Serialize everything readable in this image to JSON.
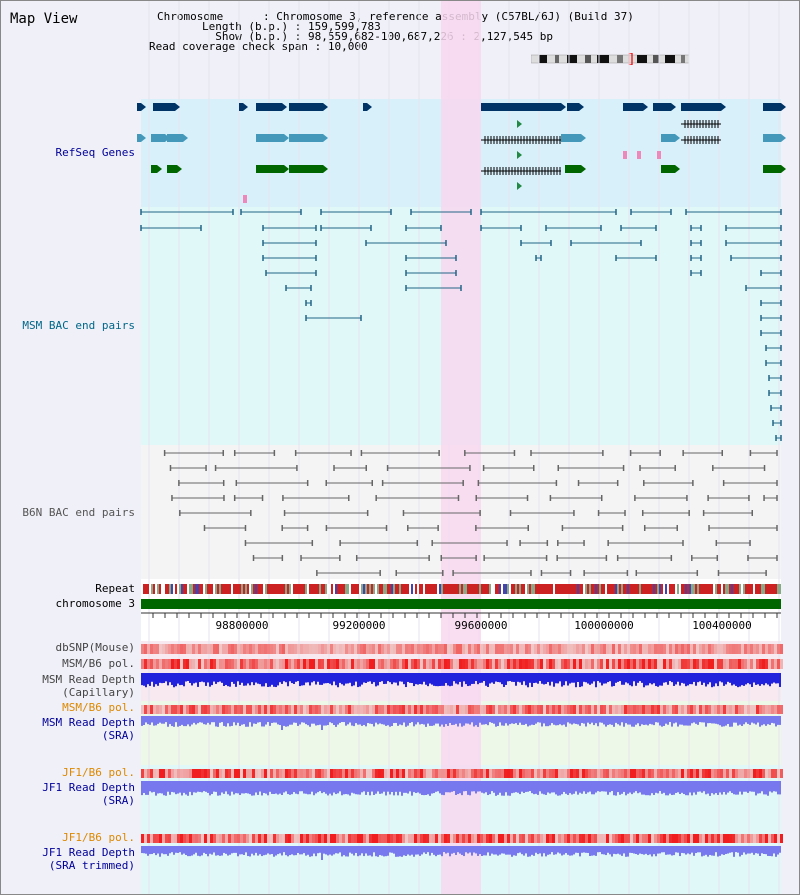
{
  "page_title": "Map View",
  "info": {
    "chromosome_key": "Chromosome",
    "chromosome_val": "Chromosome 3, reference assembly (C57BL/6J) (Build 37)",
    "length_key": "Length (b.p.)",
    "length_val": "159,599,783",
    "show_key": "Show (b.p.)",
    "show_val": "98,559,682-100,687,226 : 2,127,545 bp",
    "coverage_key": "Read coverage check span",
    "coverage_val": "10,000",
    "separator": ":"
  },
  "tracks": {
    "refseq": "RefSeq Genes",
    "msm_bac": "MSM BAC end pairs",
    "b6n_bac": "B6N BAC end pairs",
    "repeat": "Repeat",
    "chromosome": "chromosome 3",
    "dbsnp": "dbSNP(Mouse)",
    "msm_b6_pol_1": "MSM/B6 pol.",
    "msm_depth_cap_1": "MSM Read Depth",
    "msm_depth_cap_2": "(Capillary)",
    "msm_b6_pol_2": "MSM/B6 pol.",
    "msm_depth_sra_1": "MSM Read Depth",
    "msm_depth_sra_2": "(SRA)",
    "jf1_b6_pol_1": "JF1/B6 pol.",
    "jf1_depth_sra_1": "JF1 Read Depth",
    "jf1_depth_sra_2": "(SRA)",
    "jf1_b6_pol_2": "JF1/B6 pol.",
    "jf1_depth_trim_1": "JF1 Read Depth",
    "jf1_depth_trim_2": "(SRA trimmed)"
  },
  "axis_ticks": [
    "98800000",
    "99200000",
    "99600000",
    "100000000",
    "100400000"
  ],
  "colors": {
    "refseq_bg": "#d8f0fa",
    "msm_bg": "#e0f8f8",
    "b6n_bg": "#f4f4f4",
    "highlight": "#f8d8f0",
    "gene_dark": "#003366",
    "gene_mid": "#4499bb",
    "gene_green": "#006600",
    "msm_line": "#226688",
    "b6n_line": "#666666",
    "depth_blue": "#2222dd",
    "depth_light": "#7777ee",
    "chrom_green": "#006600",
    "label_navy": "#000099",
    "label_teal": "#006688",
    "label_orange": "#dd8800"
  }
}
